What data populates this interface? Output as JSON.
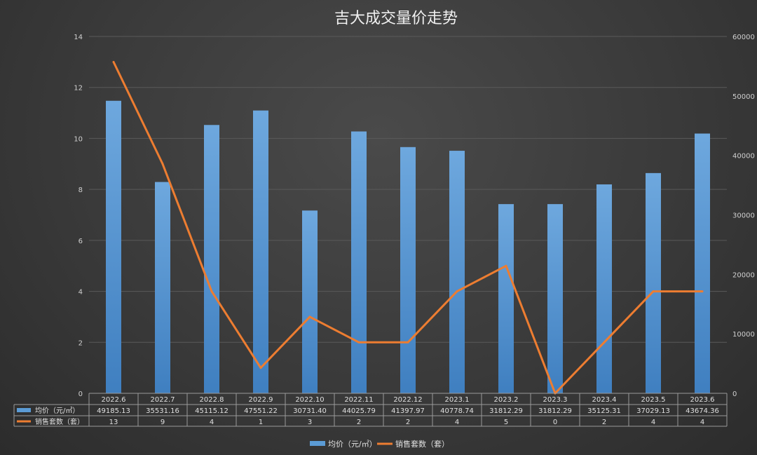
{
  "chart_data": {
    "type": "bar",
    "title": "吉大成交量价走势",
    "categories": [
      "2022.6",
      "2022.7",
      "2022.8",
      "2022.9",
      "2022.10",
      "2022.11",
      "2022.12",
      "2023.1",
      "2023.2",
      "2023.3",
      "2023.4",
      "2023.5",
      "2023.6"
    ],
    "series": [
      {
        "name": "均价（元/㎡）",
        "type": "bar",
        "axis": "right",
        "values": [
          49185.13,
          35531.16,
          45115.12,
          47551.22,
          30731.4,
          44025.79,
          41397.97,
          40778.74,
          31812.29,
          31812.29,
          35125.31,
          37029.13,
          43674.36
        ],
        "labels": [
          "49185.13",
          "35531.16",
          "45115.12",
          "47551.22",
          "30731.40",
          "44025.79",
          "41397.97",
          "40778.74",
          "31812.29",
          "31812.29",
          "35125.31",
          "37029.13",
          "43674.36"
        ],
        "color": "#5b9bd5"
      },
      {
        "name": "销售套数（套）",
        "type": "line",
        "axis": "left",
        "values": [
          13,
          9,
          4,
          1,
          3,
          2,
          2,
          4,
          5,
          0,
          2,
          4,
          4
        ],
        "labels": [
          "13",
          "9",
          "4",
          "1",
          "3",
          "2",
          "2",
          "4",
          "5",
          "0",
          "2",
          "4",
          "4"
        ],
        "color": "#ed7d31"
      }
    ],
    "y_left": {
      "min": 0,
      "max": 14,
      "ticks": [
        "0",
        "2",
        "4",
        "6",
        "8",
        "10",
        "12",
        "14"
      ]
    },
    "y_right": {
      "min": 0,
      "max": 60000,
      "ticks": [
        "0",
        "10000",
        "20000",
        "30000",
        "40000",
        "50000",
        "60000"
      ]
    },
    "grid": true,
    "legend_position": "bottom",
    "data_table": true
  }
}
